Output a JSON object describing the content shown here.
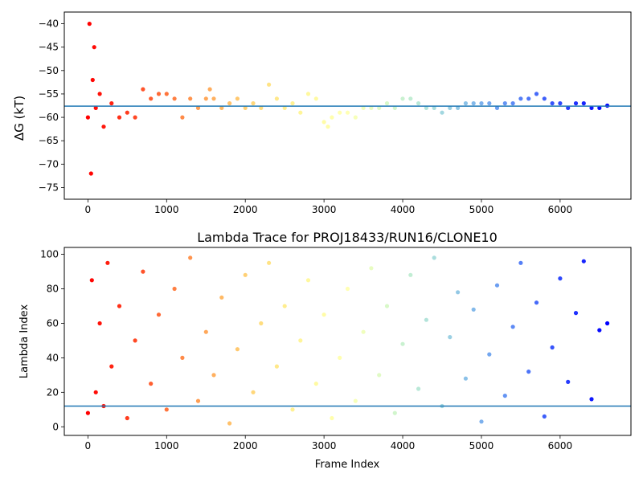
{
  "chart_data": [
    {
      "type": "scatter",
      "title": "",
      "xlabel": "",
      "ylabel": "ΔG (kT)",
      "xlim": [
        -300,
        6900
      ],
      "ylim": [
        -77.5,
        -37.5
      ],
      "xticks": [
        0,
        1000,
        2000,
        3000,
        4000,
        5000,
        6000
      ],
      "yticks": [
        -75,
        -70,
        -65,
        -60,
        -55,
        -50,
        -45,
        -40
      ],
      "colormap": "rainbow (red at frame 0 → purple at final frame)",
      "hline": {
        "y": -57.6,
        "color": "#1f77b4"
      },
      "grid": false,
      "series": [
        {
          "marker": "dot",
          "x": [
            0,
            20,
            40,
            60,
            80,
            100,
            150,
            200,
            300,
            400,
            500,
            600,
            700,
            800,
            900,
            1000,
            1100,
            1200,
            1300,
            1400,
            1500,
            1550,
            1600,
            1700,
            1800,
            1900,
            2000,
            2100,
            2200,
            2300,
            2400,
            2500,
            2600,
            2700,
            2800,
            2900,
            3000,
            3050,
            3100,
            3200,
            3300,
            3400,
            3500,
            3600,
            3700,
            3800,
            3900,
            4000,
            4100,
            4200,
            4300,
            4400,
            4500,
            4600,
            4700,
            4800,
            4900,
            5000,
            5100,
            5200,
            5300,
            5400,
            5500,
            5600,
            5700,
            5800,
            5900,
            6000,
            6100,
            6200,
            6300,
            6400,
            6500,
            6600
          ],
          "y": [
            -60,
            -40,
            -72,
            -52,
            -45,
            -58,
            -55,
            -62,
            -57,
            -60,
            -59,
            -60,
            -54,
            -56,
            -55,
            -55,
            -56,
            -60,
            -56,
            -58,
            -56,
            -54,
            -56,
            -58,
            -57,
            -56,
            -58,
            -57,
            -58,
            -53,
            -56,
            -58,
            -57,
            -59,
            -55,
            -56,
            -61,
            -62,
            -60,
            -59,
            -59,
            -60,
            -58,
            -58,
            -58,
            -57,
            -58,
            -56,
            -56,
            -57,
            -58,
            -58,
            -59,
            -58,
            -58,
            -57,
            -57,
            -57,
            -57,
            -58,
            -57,
            -57,
            -56,
            -56,
            -55,
            -56,
            -57,
            -57,
            -58,
            -57,
            -57,
            -58,
            -58,
            -57.5
          ]
        }
      ]
    },
    {
      "type": "scatter",
      "title": "Lambda Trace for PROJ18433/RUN16/CLONE10",
      "xlabel": "Frame Index",
      "ylabel": "Lambda Index",
      "xlim": [
        -300,
        6900
      ],
      "ylim": [
        -5,
        104
      ],
      "xticks": [
        0,
        1000,
        2000,
        3000,
        4000,
        5000,
        6000
      ],
      "yticks": [
        0,
        20,
        40,
        60,
        80,
        100
      ],
      "colormap": "rainbow (red at frame 0 → purple at final frame)",
      "hline": {
        "y": 12,
        "color": "#1f77b4"
      },
      "grid": false,
      "series": [
        {
          "marker": "dot",
          "x": [
            0,
            50,
            100,
            150,
            200,
            250,
            300,
            400,
            500,
            600,
            700,
            800,
            900,
            1000,
            1100,
            1200,
            1300,
            1400,
            1500,
            1600,
            1700,
            1800,
            1900,
            2000,
            2100,
            2200,
            2300,
            2400,
            2500,
            2600,
            2700,
            2800,
            2900,
            3000,
            3100,
            3200,
            3300,
            3400,
            3500,
            3600,
            3700,
            3800,
            3900,
            4000,
            4100,
            4200,
            4300,
            4400,
            4500,
            4600,
            4700,
            4800,
            4900,
            5000,
            5100,
            5200,
            5300,
            5400,
            5500,
            5600,
            5700,
            5800,
            5900,
            6000,
            6100,
            6200,
            6300,
            6400,
            6500,
            6600
          ],
          "y": [
            8,
            85,
            20,
            60,
            12,
            95,
            35,
            70,
            5,
            50,
            90,
            25,
            65,
            10,
            80,
            40,
            98,
            15,
            55,
            30,
            75,
            2,
            45,
            88,
            20,
            60,
            95,
            35,
            70,
            10,
            50,
            85,
            25,
            65,
            5,
            40,
            80,
            15,
            55,
            92,
            30,
            70,
            8,
            48,
            88,
            22,
            62,
            98,
            12,
            52,
            78,
            28,
            68,
            3,
            42,
            82,
            18,
            58,
            95,
            32,
            72,
            6,
            46,
            86,
            26,
            66,
            96,
            16,
            56,
            60
          ]
        }
      ]
    }
  ]
}
